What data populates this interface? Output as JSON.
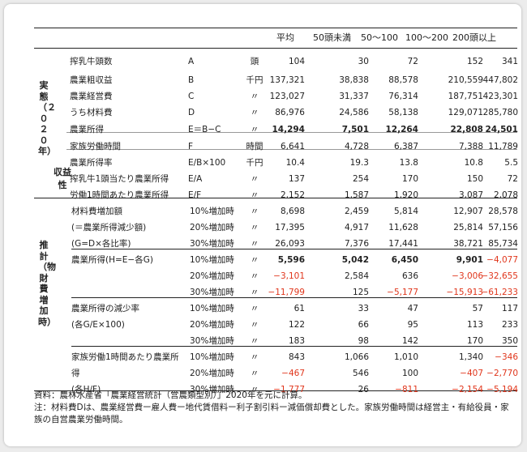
{
  "columns": [
    "平均",
    "50頭未満",
    "50〜100",
    "100〜200",
    "200頭以上"
  ],
  "side": {
    "jittai": "実態（２０２０年）",
    "shuekisei": "収益性",
    "suikei": "推計（物財費増加時）"
  },
  "rows": [
    {
      "label": "搾乳牛頭数",
      "code": "A",
      "unit": "頭",
      "values": [
        "104",
        "30",
        "72",
        "152",
        "341"
      ]
    },
    {
      "label": "農業粗収益",
      "code": "B",
      "unit": "千円",
      "values": [
        "137,321",
        "38,838",
        "88,578",
        "210,559",
        "447,802"
      ]
    },
    {
      "label": "農業経営費",
      "code": "C",
      "unit": "〃",
      "values": [
        "123,027",
        "31,337",
        "76,314",
        "187,751",
        "423,301"
      ]
    },
    {
      "label": "うち材料費",
      "code": "D",
      "unit": "〃",
      "values": [
        "86,976",
        "24,586",
        "58,138",
        "129,071",
        "285,780"
      ]
    },
    {
      "label": "農業所得",
      "code": "E＝B−C",
      "unit": "〃",
      "values": [
        "14,294",
        "7,501",
        "12,264",
        "22,808",
        "24,501"
      ]
    },
    {
      "label": "家族労働時間",
      "code": "F",
      "unit": "時間",
      "values": [
        "6,641",
        "4,728",
        "6,387",
        "7,388",
        "11,789"
      ]
    },
    {
      "label": "農業所得率",
      "code": "E/B×100",
      "unit": "千円",
      "values": [
        "10.4",
        "19.3",
        "13.8",
        "10.8",
        "5.5"
      ]
    },
    {
      "label": "搾乳牛1頭当たり農業所得",
      "code": "E/A",
      "unit": "〃",
      "values": [
        "137",
        "254",
        "170",
        "150",
        "72"
      ]
    },
    {
      "label": "労働1時間あたり農業所得",
      "code": "E/F",
      "unit": "〃",
      "values": [
        "2,152",
        "1,587",
        "1,920",
        "3,087",
        "2,078"
      ]
    },
    {
      "label": "材料費増加額",
      "code": "10%増加時",
      "unit": "〃",
      "values": [
        "8,698",
        "2,459",
        "5,814",
        "12,907",
        "28,578"
      ]
    },
    {
      "label": "(＝農業所得減少額)",
      "code": "20%増加時",
      "unit": "〃",
      "values": [
        "17,395",
        "4,917",
        "11,628",
        "25,814",
        "57,156"
      ]
    },
    {
      "label": "(G=D×各比率)",
      "code": "30%増加時",
      "unit": "〃",
      "values": [
        "26,093",
        "7,376",
        "17,441",
        "38,721",
        "85,734"
      ]
    },
    {
      "label": "農業所得(H=E−各G)",
      "code": "10%増加時",
      "unit": "〃",
      "values": [
        "5,596",
        "5,042",
        "6,450",
        "9,901",
        "−4,077"
      ]
    },
    {
      "label": "",
      "code": "20%増加時",
      "unit": "〃",
      "values": [
        "−3,101",
        "2,584",
        "636",
        "−3,006",
        "−32,655"
      ]
    },
    {
      "label": "",
      "code": "30%増加時",
      "unit": "〃",
      "values": [
        "−11,799",
        "125",
        "−5,177",
        "−15,913",
        "−61,233"
      ]
    },
    {
      "label": "農業所得の減少率",
      "code": "10%増加時",
      "unit": "〃",
      "values": [
        "61",
        "33",
        "47",
        "57",
        "117"
      ]
    },
    {
      "label": "(各G/E×100)",
      "code": "20%増加時",
      "unit": "〃",
      "values": [
        "122",
        "66",
        "95",
        "113",
        "233"
      ]
    },
    {
      "label": "",
      "code": "30%増加時",
      "unit": "〃",
      "values": [
        "183",
        "98",
        "142",
        "170",
        "350"
      ]
    },
    {
      "label": "家族労働1時間あたり農業所",
      "code": "10%増加時",
      "unit": "〃",
      "values": [
        "843",
        "1,066",
        "1,010",
        "1,340",
        "−346"
      ]
    },
    {
      "label": "得",
      "code": "20%増加時",
      "unit": "〃",
      "values": [
        "−467",
        "546",
        "100",
        "−407",
        "−2,770"
      ]
    },
    {
      "label": "(各H/F)",
      "code": "30%増加時",
      "unit": "〃",
      "values": [
        "−1,777",
        "26",
        "−811",
        "−2,154",
        "−5,194"
      ]
    }
  ],
  "notes": {
    "source": "資料：農林水産省「農業経営統計（営農類型別）」2020年を元に計算。",
    "note": "注：材料費Dは、農業経営費ー雇人費ー地代賃借料ー利子割引料ー減価償却費とした。家族労働時間は経営主・有給役員・家族の自営農業労働時間。"
  }
}
